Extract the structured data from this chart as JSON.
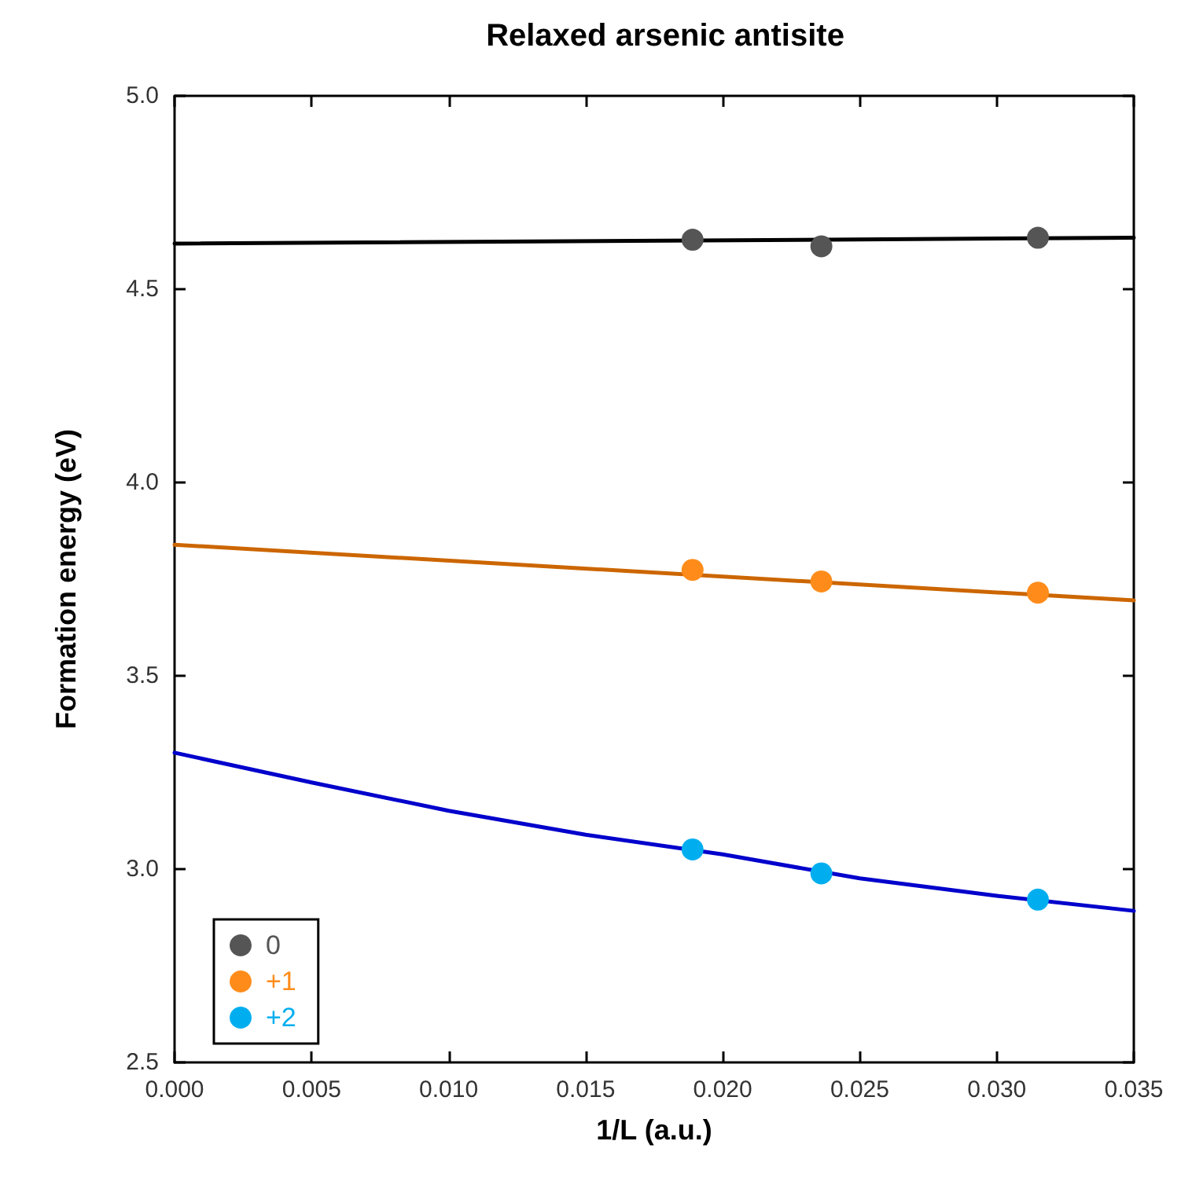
{
  "chart_data": {
    "type": "scatter",
    "title": "Relaxed arsenic antisite",
    "xlabel": "1/L (a.u.)",
    "ylabel": "Formation energy (eV)",
    "xlim": [
      0,
      0.035
    ],
    "xticks": [
      {
        "value": 0,
        "label": "0.000"
      },
      {
        "value": 0.005,
        "label": "0.005"
      },
      {
        "value": 0.01,
        "label": "0.010"
      },
      {
        "value": 0.015,
        "label": "0.015"
      },
      {
        "value": 0.02,
        "label": "0.020"
      },
      {
        "value": 0.025,
        "label": "0.025"
      },
      {
        "value": 0.03,
        "label": "0.030"
      },
      {
        "value": 0.035,
        "label": "0.035"
      }
    ],
    "ylim": [
      2.5,
      5.0
    ],
    "yticks": [
      {
        "value": 2.5,
        "label": "2.5"
      },
      {
        "value": 3,
        "label": "3.0"
      },
      {
        "value": 3.5,
        "label": "3.5"
      },
      {
        "value": 4,
        "label": "4.0"
      },
      {
        "value": 4.5,
        "label": "4.5"
      },
      {
        "value": 5,
        "label": "5.0"
      }
    ],
    "grid": false,
    "legend": "bottom left",
    "marker": "circle",
    "series": [
      {
        "type": "line",
        "marker": "none",
        "color": "#000000",
        "x": [
          0,
          0.035
        ],
        "values": [
          4.618,
          4.633
        ]
      },
      {
        "type": "line",
        "marker": "none",
        "color": "#cc6600",
        "x": [
          0,
          0.035
        ],
        "values": [
          3.839,
          3.695
        ]
      },
      {
        "type": "line",
        "marker": "none",
        "color": "#0000cc",
        "x": [
          0,
          0.005,
          0.01,
          0.015,
          0.02,
          0.025,
          0.03,
          0.035
        ],
        "values": [
          3.301,
          3.224,
          3.151,
          3.089,
          3.038,
          2.976,
          2.931,
          2.892
        ]
      },
      {
        "name": "0",
        "color": "#555555",
        "x": [
          0.0189,
          0.0236,
          0.0315
        ],
        "values": [
          4.628,
          4.611,
          4.633
        ]
      },
      {
        "name": "+1",
        "color": "#ff8c1a",
        "x": [
          0.0189,
          0.0236,
          0.0315
        ],
        "values": [
          3.774,
          3.744,
          3.715
        ]
      },
      {
        "name": "+2",
        "color": "#00aeef",
        "x": [
          0.0189,
          0.0236,
          0.0315
        ],
        "values": [
          3.051,
          2.989,
          2.921
        ]
      }
    ]
  }
}
